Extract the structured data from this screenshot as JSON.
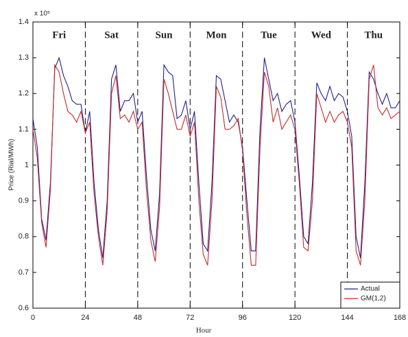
{
  "chart_data": {
    "type": "line",
    "x_label": "Hour",
    "y_label": "Price (Rial/MWh)",
    "exponent_label": "x 10⁵",
    "day_labels": [
      "Fri",
      "Sat",
      "Sun",
      "Mon",
      "Tue",
      "Wed",
      "Thu"
    ],
    "x": [
      0,
      2,
      4,
      6,
      8,
      10,
      12,
      14,
      16,
      18,
      20,
      22,
      24,
      26,
      28,
      30,
      32,
      34,
      36,
      38,
      40,
      42,
      44,
      46,
      48,
      50,
      52,
      54,
      56,
      58,
      60,
      62,
      64,
      66,
      68,
      70,
      72,
      74,
      76,
      78,
      80,
      82,
      84,
      86,
      88,
      90,
      92,
      94,
      96,
      98,
      100,
      102,
      104,
      106,
      108,
      110,
      112,
      114,
      116,
      118,
      120,
      122,
      124,
      126,
      128,
      130,
      132,
      134,
      136,
      138,
      140,
      142,
      144,
      146,
      148,
      150,
      152,
      154,
      156,
      158,
      160,
      162,
      164,
      166,
      168
    ],
    "series": [
      {
        "name": "Actual",
        "color": "#1f1f8f",
        "values": [
          1.13,
          1.05,
          0.85,
          0.79,
          0.95,
          1.27,
          1.3,
          1.25,
          1.22,
          1.18,
          1.17,
          1.17,
          1.09,
          1.15,
          0.95,
          0.82,
          0.74,
          0.9,
          1.24,
          1.28,
          1.15,
          1.18,
          1.18,
          1.2,
          1.12,
          1.15,
          0.97,
          0.82,
          0.76,
          0.92,
          1.28,
          1.26,
          1.25,
          1.13,
          1.14,
          1.18,
          1.1,
          1.15,
          0.95,
          0.78,
          0.76,
          0.95,
          1.25,
          1.24,
          1.18,
          1.12,
          1.14,
          1.12,
          1.05,
          0.9,
          0.76,
          0.76,
          1.1,
          1.3,
          1.24,
          1.18,
          1.2,
          1.15,
          1.17,
          1.18,
          1.12,
          0.97,
          0.8,
          0.78,
          0.95,
          1.23,
          1.2,
          1.18,
          1.22,
          1.18,
          1.2,
          1.19,
          1.15,
          1.08,
          0.8,
          0.74,
          0.95,
          1.26,
          1.24,
          1.2,
          1.17,
          1.2,
          1.16,
          1.16,
          1.18
        ]
      },
      {
        "name": "GM(1,2)",
        "color": "#c8282a",
        "values": [
          1.1,
          1.02,
          0.84,
          0.77,
          0.93,
          1.28,
          1.26,
          1.2,
          1.15,
          1.14,
          1.12,
          1.15,
          1.09,
          1.12,
          0.92,
          0.8,
          0.72,
          0.87,
          1.2,
          1.25,
          1.13,
          1.14,
          1.12,
          1.15,
          1.1,
          1.12,
          0.93,
          0.79,
          0.73,
          0.88,
          1.24,
          1.2,
          1.15,
          1.1,
          1.1,
          1.14,
          1.08,
          1.12,
          0.9,
          0.75,
          0.72,
          0.9,
          1.22,
          1.19,
          1.1,
          1.1,
          1.11,
          1.13,
          1.04,
          0.86,
          0.72,
          0.72,
          1.05,
          1.26,
          1.22,
          1.12,
          1.16,
          1.1,
          1.12,
          1.14,
          1.1,
          0.95,
          0.77,
          0.76,
          0.9,
          1.2,
          1.16,
          1.12,
          1.15,
          1.12,
          1.14,
          1.15,
          1.12,
          1.05,
          0.76,
          0.72,
          0.9,
          1.24,
          1.28,
          1.16,
          1.14,
          1.16,
          1.13,
          1.14,
          1.15
        ]
      }
    ],
    "xlim": [
      0,
      168
    ],
    "xticks": [
      0,
      24,
      48,
      72,
      96,
      120,
      144,
      168
    ],
    "ylim": [
      0.6,
      1.4
    ],
    "yticks": [
      0.6,
      0.7,
      0.8,
      0.9,
      1,
      1.1,
      1.2,
      1.3,
      1.4
    ],
    "grid": false,
    "day_separators": true,
    "legend": "lower right"
  }
}
